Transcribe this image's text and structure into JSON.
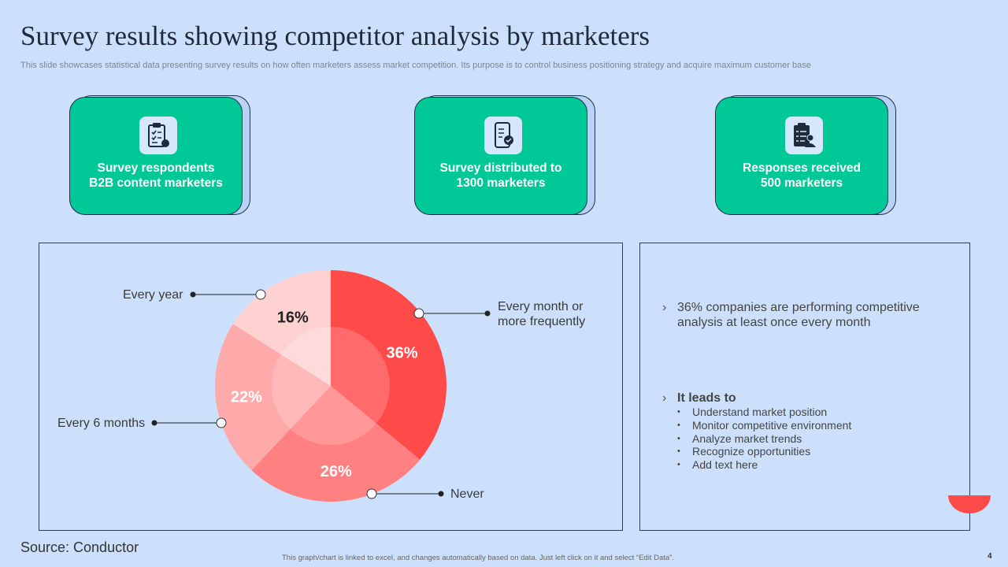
{
  "header": {
    "title": "Survey results showing competitor analysis by marketers",
    "subtitle": "This slide showcases statistical data presenting survey results on how often marketers assess market competition. Its purpose is to control business positioning strategy and acquire maximum customer base"
  },
  "cards": [
    {
      "line1": "Survey respondents",
      "line2": "B2B content marketers",
      "icon": "checklist-icon"
    },
    {
      "line1": "Survey distributed to",
      "line2": "1300 marketers",
      "icon": "mobile-survey-icon"
    },
    {
      "line1": "Responses received",
      "line2": "500 marketers",
      "icon": "survey-response-icon"
    }
  ],
  "chart_data": {
    "type": "pie",
    "categories": [
      "Every month or more frequently",
      "Never",
      "Every 6 months",
      "Every year"
    ],
    "values": [
      36,
      26,
      22,
      16
    ],
    "value_labels": [
      "36%",
      "26%",
      "22%",
      "16%"
    ],
    "colors": [
      "#ff4a4a",
      "#ff8080",
      "#ffaaaa",
      "#ffd2d2"
    ],
    "label_colors": [
      "#ffffff",
      "#ffffff",
      "#ffffff",
      "#222222"
    ],
    "legend_lines": {
      "month_line1": "Every month or",
      "month_line2": "more frequently",
      "never": "Never",
      "six": "Every 6 months",
      "year": "Every year"
    }
  },
  "insights": {
    "main_point": "36% companies are performing competitive analysis at least once every month",
    "leads_to_title": "It leads to",
    "leads_to_items": [
      "Understand market position",
      "Monitor competitive environment",
      "Analyze market trends",
      "Recognize opportunities",
      "Add text here"
    ]
  },
  "footer": {
    "source": "Source: Conductor",
    "note": "This graph/chart is linked to excel, and changes automatically based on data. Just left click on it and select “Edit Data”.",
    "page_number": "4"
  }
}
